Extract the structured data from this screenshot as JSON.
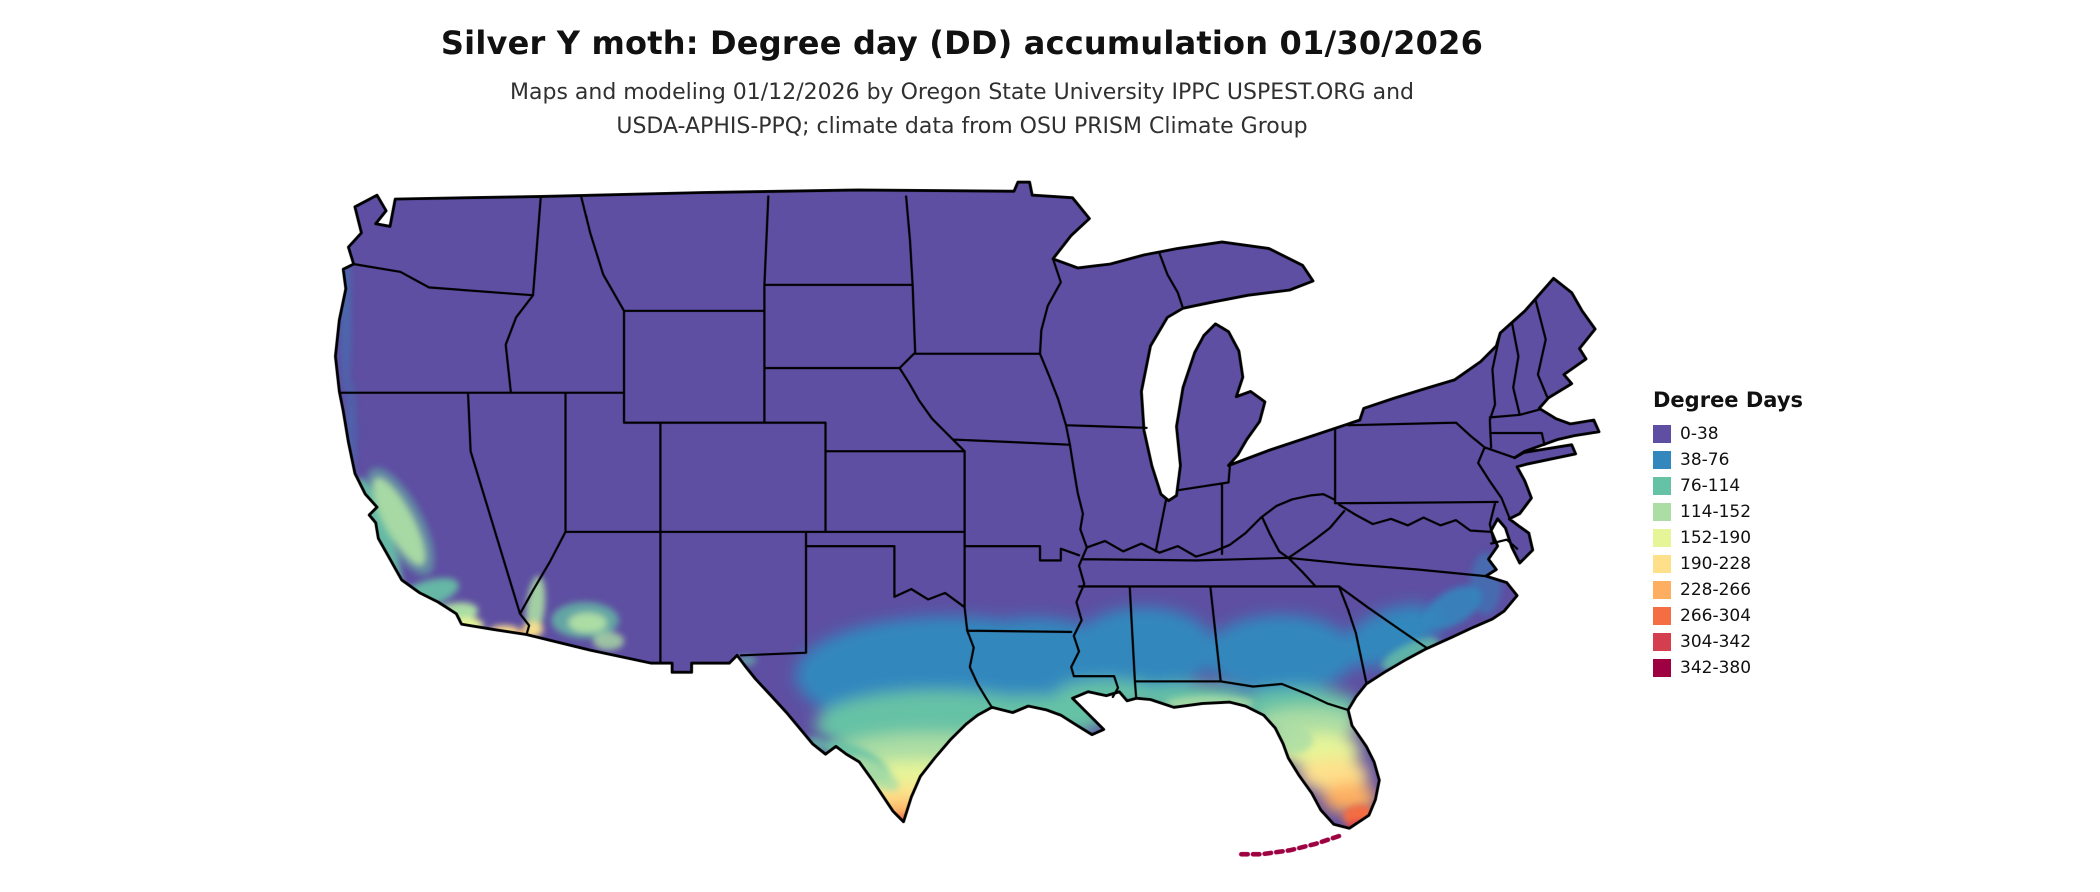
{
  "title": "Silver Y moth: Degree day (DD) accumulation 01/30/2026",
  "subtitle": {
    "line1": "Maps and modeling 01/12/2026 by Oregon State University IPPC USPEST.ORG and",
    "line2": "USDA-APHIS-PPQ; climate data from OSU PRISM Climate Group"
  },
  "legend": {
    "title": "Degree Days",
    "entries": [
      {
        "label": "0-38",
        "color": "#5e4fa2"
      },
      {
        "label": "38-76",
        "color": "#3288bd"
      },
      {
        "label": "76-114",
        "color": "#66c2a5"
      },
      {
        "label": "114-152",
        "color": "#abdda4"
      },
      {
        "label": "152-190",
        "color": "#e6f598"
      },
      {
        "label": "190-228",
        "color": "#fee08b"
      },
      {
        "label": "228-266",
        "color": "#fdae61"
      },
      {
        "label": "266-304",
        "color": "#f46d43"
      },
      {
        "label": "304-342",
        "color": "#d53e4f"
      },
      {
        "label": "342-380",
        "color": "#9e0142"
      }
    ]
  },
  "map": {
    "background": "#ffffff",
    "state_border_color": "#000000",
    "base_color": "#5e4fa2"
  }
}
